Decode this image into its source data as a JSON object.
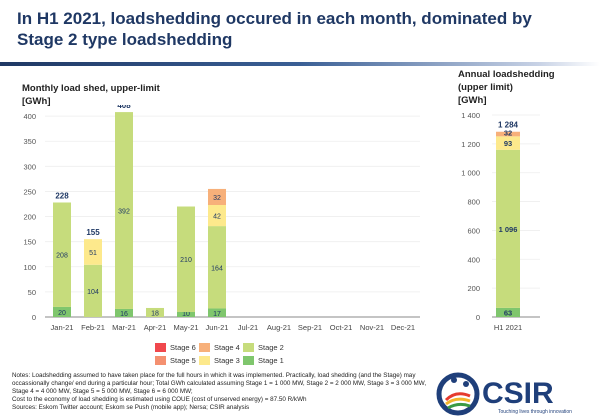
{
  "title": "In H1 2021, loadshedding occured in each month, dominated by Stage 2 type loadshedding",
  "chart_data": [
    {
      "type": "bar",
      "stacked": true,
      "title": "Monthly load shed, upper-limit",
      "ylabel": "[GWh]",
      "ylim": [
        0,
        450
      ],
      "yticks": [
        0,
        50,
        100,
        150,
        200,
        250,
        300,
        350,
        400,
        450
      ],
      "grid": true,
      "categories": [
        "Jan-21",
        "Feb-21",
        "Mar-21",
        "Apr-21",
        "May-21",
        "Jun-21",
        "Jul-21",
        "Aug-21",
        "Sep-21",
        "Oct-21",
        "Nov-21",
        "Dec-21"
      ],
      "series": [
        {
          "name": "Stage 1",
          "color": "#7fc66d",
          "values": [
            20,
            0,
            16,
            null,
            10,
            17,
            null,
            null,
            null,
            null,
            null,
            null
          ]
        },
        {
          "name": "Stage 2",
          "color": "#c6dc7c",
          "values": [
            208,
            104,
            392,
            18,
            210,
            164,
            null,
            null,
            null,
            null,
            null,
            null
          ]
        },
        {
          "name": "Stage 3",
          "color": "#fde98c",
          "values": [
            null,
            51,
            null,
            null,
            null,
            42,
            null,
            null,
            null,
            null,
            null,
            null
          ]
        },
        {
          "name": "Stage 4",
          "color": "#f7b07a",
          "values": [
            null,
            null,
            null,
            null,
            null,
            32,
            null,
            null,
            null,
            null,
            null,
            null
          ]
        },
        {
          "name": "Stage 5",
          "color": "#f49070",
          "values": [
            null,
            null,
            null,
            null,
            null,
            null,
            null,
            null,
            null,
            null,
            null,
            null
          ]
        },
        {
          "name": "Stage 6",
          "color": "#f0484d",
          "values": [
            null,
            null,
            null,
            null,
            null,
            null,
            null,
            null,
            null,
            null,
            null,
            null
          ]
        }
      ],
      "totals": [
        "228",
        "155",
        "408",
        null,
        null,
        null,
        null,
        null,
        null,
        null,
        null,
        null
      ]
    },
    {
      "type": "bar",
      "stacked": true,
      "title": "Annual loadshedding (upper limit)",
      "ylabel": "[GWh]",
      "ylim": [
        0,
        1400
      ],
      "yticks": [
        "0",
        "200",
        "400",
        "600",
        "800",
        "1 000",
        "1 200",
        "1 400"
      ],
      "grid": true,
      "categories": [
        "H1 2021"
      ],
      "series": [
        {
          "name": "Stage 1",
          "color": "#7fc66d",
          "values": [
            63
          ],
          "labels": [
            "63"
          ]
        },
        {
          "name": "Stage 2",
          "color": "#c6dc7c",
          "values": [
            1096
          ],
          "labels": [
            "1 096"
          ]
        },
        {
          "name": "Stage 3",
          "color": "#fde98c",
          "values": [
            93
          ],
          "labels": [
            "93"
          ]
        },
        {
          "name": "Stage 4",
          "color": "#f7b07a",
          "values": [
            32
          ],
          "labels": [
            "32"
          ]
        }
      ],
      "totals": [
        "1 284"
      ]
    }
  ],
  "legend": [
    {
      "name": "Stage 6",
      "color": "#f0484d"
    },
    {
      "name": "Stage 4",
      "color": "#f7b07a"
    },
    {
      "name": "Stage 2",
      "color": "#c6dc7c"
    },
    {
      "name": "Stage 5",
      "color": "#f49070"
    },
    {
      "name": "Stage 3",
      "color": "#fde98c"
    },
    {
      "name": "Stage 1",
      "color": "#7fc66d"
    }
  ],
  "notes": [
    "Notes: Loadshedding assumed to have taken place for the full hours in which it was implemented.  Practically, load shedding (and the Stage) may occassionally change/ end during a particular hour; Total GWh calculated assuming Stage 1 = 1 000 MW, Stage 2 = 2 000 MW, Stage 3 = 3 000 MW, Stage 4 = 4 000 MW, Stage 5 = 5 000 MW, Stage 6 = 6 000 MW;",
    "Cost to the economy of load shedding is estimated using COUE (cost of unserved energy) = 87.50 R/kWh",
    "Sources: Eskom Twitter account; Eskom se Push (mobile app); Nersa; CSIR analysis"
  ],
  "logo": {
    "name": "CSIR",
    "tagline": "Touching lives through innovation"
  }
}
